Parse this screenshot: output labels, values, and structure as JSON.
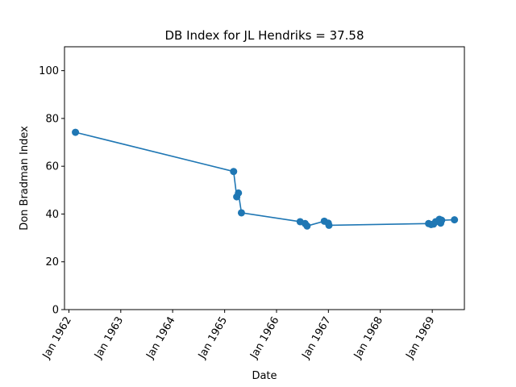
{
  "chart_data": {
    "type": "line",
    "title": "DB Index for JL Hendriks = 37.58",
    "xlabel": "Date",
    "ylabel": "Don Bradman Index",
    "ylim": [
      0,
      110
    ],
    "xlim": [
      "1961-12-01",
      "1969-08-15"
    ],
    "grid": false,
    "y_ticks": [
      0,
      20,
      40,
      60,
      80,
      100
    ],
    "x_ticks": [
      {
        "date": "1962-01-01",
        "label": "Jan 1962"
      },
      {
        "date": "1963-01-01",
        "label": "Jan 1963"
      },
      {
        "date": "1964-01-01",
        "label": "Jan 1964"
      },
      {
        "date": "1965-01-01",
        "label": "Jan 1965"
      },
      {
        "date": "1966-01-01",
        "label": "Jan 1966"
      },
      {
        "date": "1967-01-01",
        "label": "Jan 1967"
      },
      {
        "date": "1968-01-01",
        "label": "Jan 1968"
      },
      {
        "date": "1969-01-01",
        "label": "Jan 1969"
      }
    ],
    "colors": {
      "series": "#1f77b4"
    },
    "series": [
      {
        "marker": "circle",
        "points": [
          {
            "x": "1962-02-16",
            "y": 74.2
          },
          {
            "x": "1965-03-05",
            "y": 57.8
          },
          {
            "x": "1965-03-27",
            "y": 47.2
          },
          {
            "x": "1965-04-08",
            "y": 48.8
          },
          {
            "x": "1965-04-29",
            "y": 40.5
          },
          {
            "x": "1966-06-16",
            "y": 36.8
          },
          {
            "x": "1966-07-21",
            "y": 36.0
          },
          {
            "x": "1966-08-04",
            "y": 35.0
          },
          {
            "x": "1966-12-03",
            "y": 37.0
          },
          {
            "x": "1966-12-31",
            "y": 36.2
          },
          {
            "x": "1967-01-05",
            "y": 35.3
          },
          {
            "x": "1968-12-06",
            "y": 36.0
          },
          {
            "x": "1968-12-24",
            "y": 35.6
          },
          {
            "x": "1969-01-10",
            "y": 35.8
          },
          {
            "x": "1969-01-25",
            "y": 36.8
          },
          {
            "x": "1969-02-20",
            "y": 37.8
          },
          {
            "x": "1969-03-01",
            "y": 36.2
          },
          {
            "x": "1969-03-08",
            "y": 37.4
          },
          {
            "x": "1969-06-06",
            "y": 37.58
          }
        ]
      }
    ]
  }
}
